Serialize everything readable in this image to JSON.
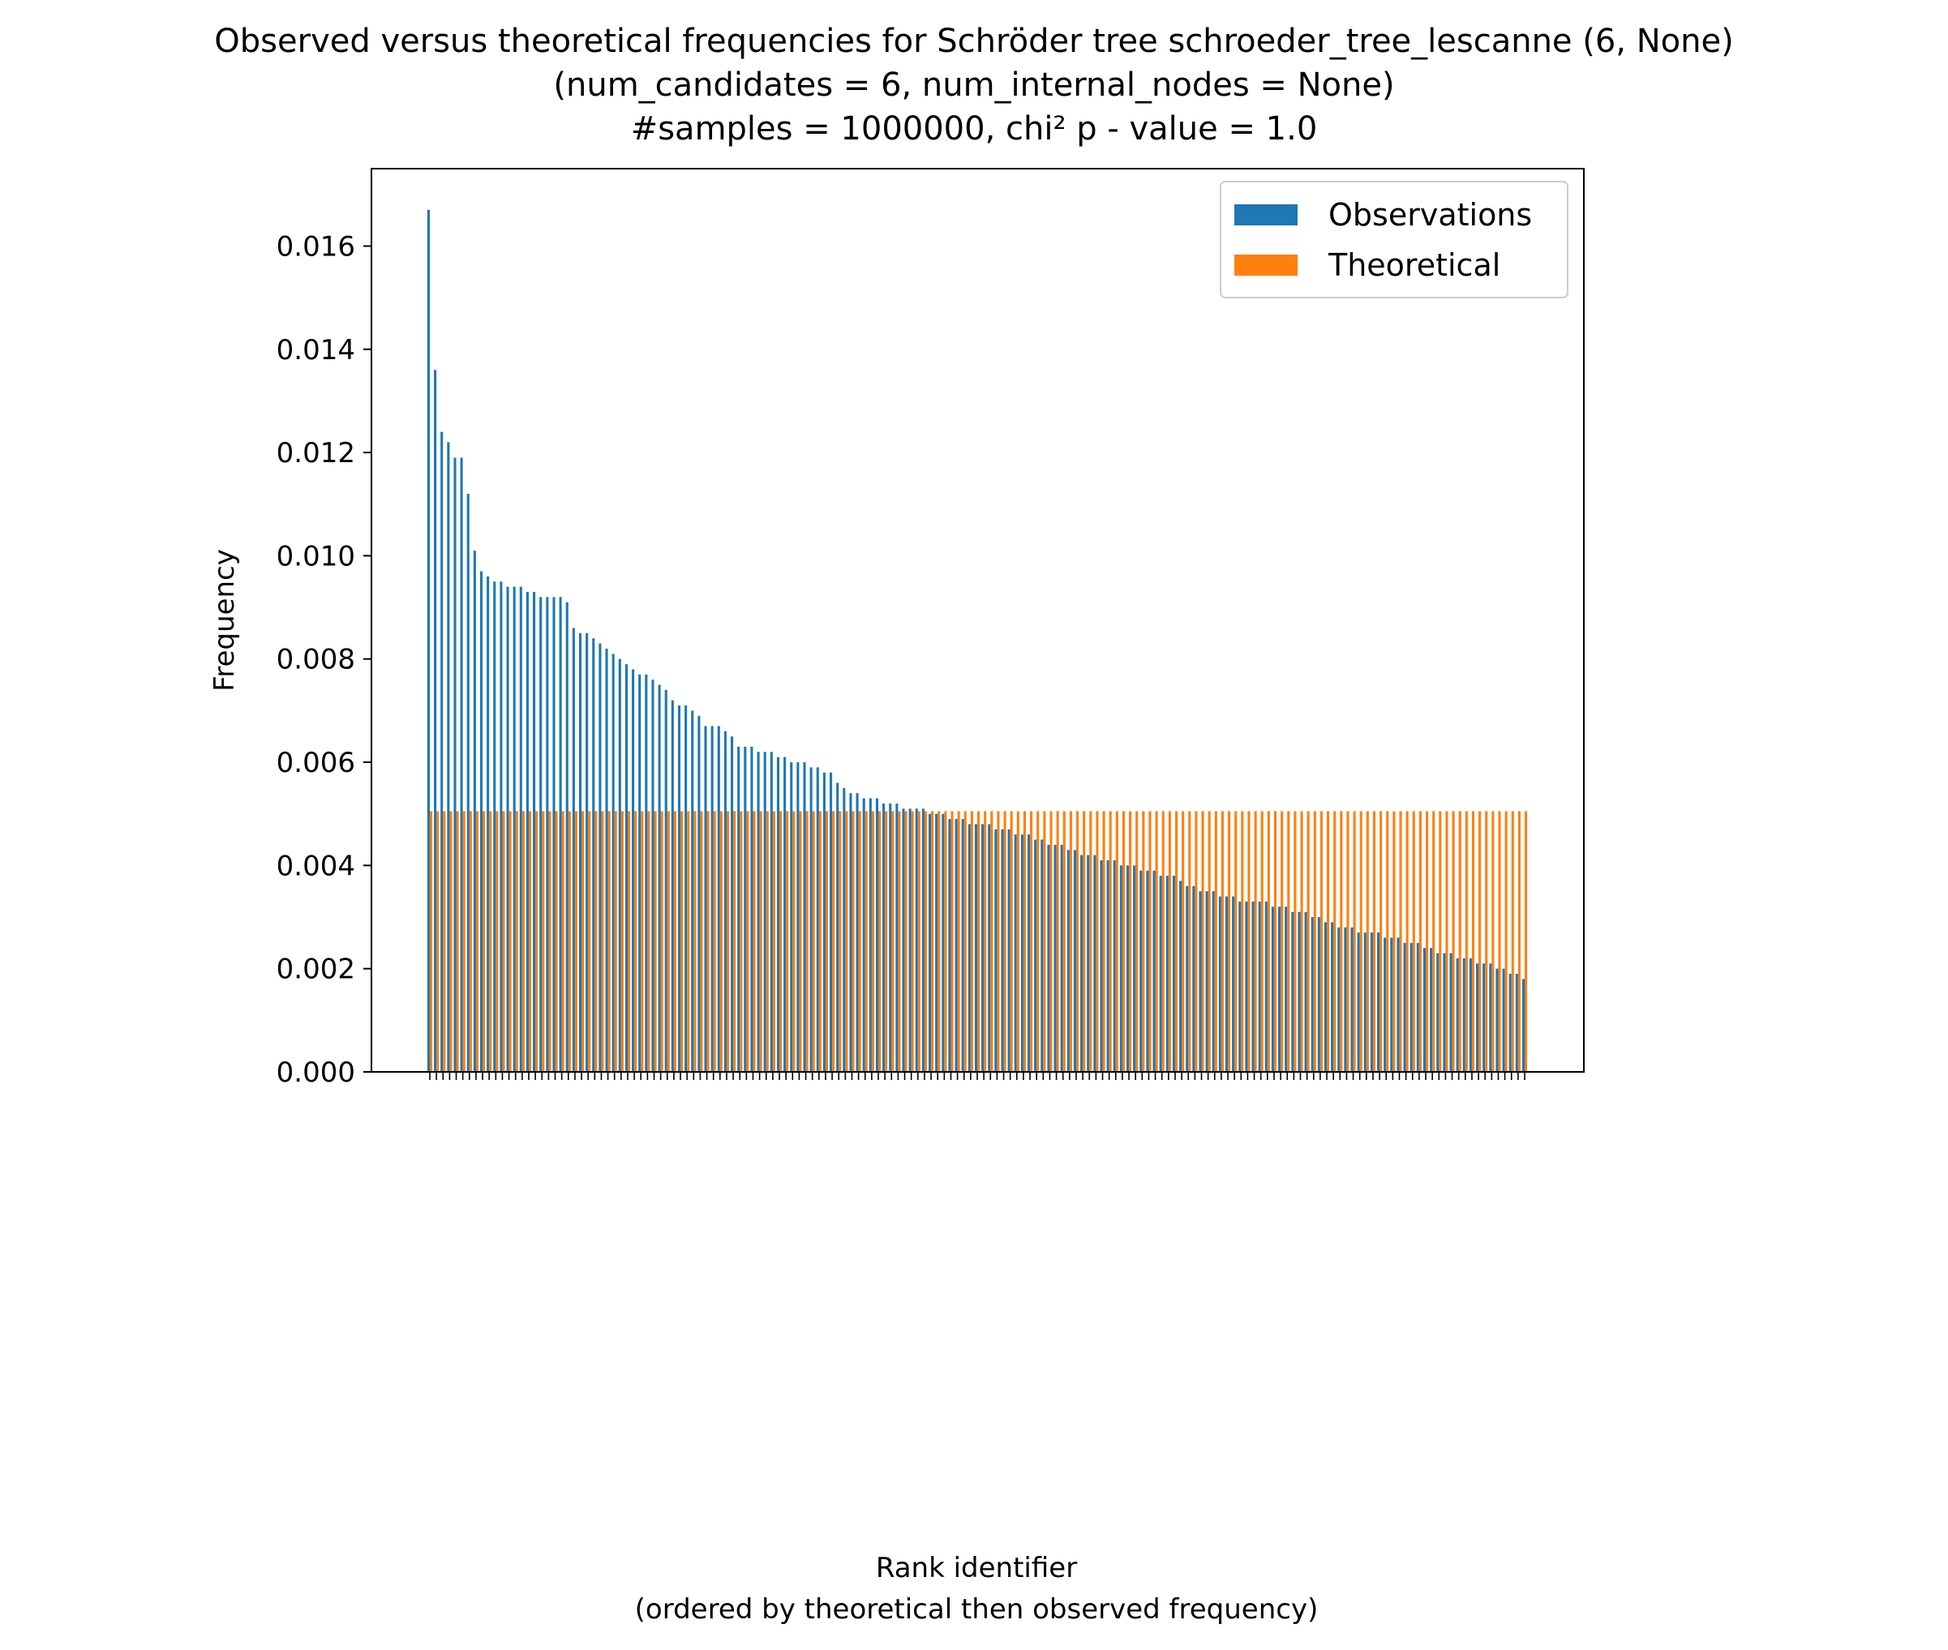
{
  "chart_data": {
    "type": "bar",
    "title_lines": [
      "Observed versus theoretical frequencies for Schröder tree schroeder_tree_lescanne (6, None)",
      "(num_candidates = 6, num_internal_nodes = None)",
      "#samples = 1000000, chi² p - value = 1.0"
    ],
    "xlabel_lines": [
      "Rank identifier",
      "(ordered by theoretical then observed frequency)"
    ],
    "ylabel": "Frequency",
    "ylim": [
      0,
      0.0175
    ],
    "yticks": [
      0.0,
      0.002,
      0.004,
      0.006,
      0.008,
      0.01,
      0.012,
      0.014,
      0.016
    ],
    "ytick_labels": [
      "0.000",
      "0.002",
      "0.004",
      "0.006",
      "0.008",
      "0.010",
      "0.012",
      "0.014",
      "0.016"
    ],
    "legend_position": "top-right",
    "grid": false,
    "colors": {
      "observed": "#1f77b4",
      "theoretical": "#ff7f0e"
    },
    "series": [
      {
        "name": "Observations",
        "values": [
          0.0167,
          0.0136,
          0.0124,
          0.0122,
          0.0119,
          0.0119,
          0.0112,
          0.0101,
          0.0097,
          0.0096,
          0.0095,
          0.0095,
          0.0094,
          0.0094,
          0.0094,
          0.0093,
          0.0093,
          0.0092,
          0.0092,
          0.0092,
          0.0092,
          0.0091,
          0.0086,
          0.0085,
          0.0085,
          0.0084,
          0.0083,
          0.0082,
          0.0081,
          0.008,
          0.0079,
          0.0078,
          0.0077,
          0.0077,
          0.0076,
          0.0075,
          0.0074,
          0.0072,
          0.0071,
          0.0071,
          0.007,
          0.0069,
          0.0067,
          0.0067,
          0.0067,
          0.0066,
          0.0065,
          0.0063,
          0.0063,
          0.0063,
          0.0062,
          0.0062,
          0.0062,
          0.0061,
          0.0061,
          0.006,
          0.006,
          0.006,
          0.0059,
          0.0059,
          0.0058,
          0.0058,
          0.0056,
          0.0055,
          0.0054,
          0.0054,
          0.0053,
          0.0053,
          0.0053,
          0.0052,
          0.0052,
          0.0052,
          0.0051,
          0.0051,
          0.0051,
          0.0051,
          0.005,
          0.005,
          0.005,
          0.0049,
          0.0049,
          0.0049,
          0.0048,
          0.0048,
          0.0048,
          0.0048,
          0.0047,
          0.0047,
          0.0047,
          0.0046,
          0.0046,
          0.0046,
          0.0045,
          0.0045,
          0.0044,
          0.0044,
          0.0044,
          0.0043,
          0.0043,
          0.0042,
          0.0042,
          0.0042,
          0.0041,
          0.0041,
          0.0041,
          0.004,
          0.004,
          0.004,
          0.0039,
          0.0039,
          0.0039,
          0.0038,
          0.0038,
          0.0038,
          0.0037,
          0.0036,
          0.0036,
          0.0035,
          0.0035,
          0.0035,
          0.0034,
          0.0034,
          0.0034,
          0.0033,
          0.0033,
          0.0033,
          0.0033,
          0.0033,
          0.0032,
          0.0032,
          0.0032,
          0.0031,
          0.0031,
          0.0031,
          0.003,
          0.003,
          0.0029,
          0.0029,
          0.0028,
          0.0028,
          0.0028,
          0.0027,
          0.0027,
          0.0027,
          0.0027,
          0.0026,
          0.0026,
          0.0026,
          0.0025,
          0.0025,
          0.0025,
          0.0024,
          0.0024,
          0.0023,
          0.0023,
          0.0023,
          0.0022,
          0.0022,
          0.0022,
          0.0021,
          0.0021,
          0.0021,
          0.002,
          0.002,
          0.0019,
          0.0019,
          0.0018
        ]
      },
      {
        "name": "Theoretical",
        "values": [
          0.005051,
          0.005051,
          0.005051,
          0.005051,
          0.005051,
          0.005051,
          0.005051,
          0.005051,
          0.005051,
          0.005051,
          0.005051,
          0.005051,
          0.005051,
          0.005051,
          0.005051,
          0.005051,
          0.005051,
          0.005051,
          0.005051,
          0.005051,
          0.005051,
          0.005051,
          0.005051,
          0.005051,
          0.005051,
          0.005051,
          0.005051,
          0.005051,
          0.005051,
          0.005051,
          0.005051,
          0.005051,
          0.005051,
          0.005051,
          0.005051,
          0.005051,
          0.005051,
          0.005051,
          0.005051,
          0.005051,
          0.005051,
          0.005051,
          0.005051,
          0.005051,
          0.005051,
          0.005051,
          0.005051,
          0.005051,
          0.005051,
          0.005051,
          0.005051,
          0.005051,
          0.005051,
          0.005051,
          0.005051,
          0.005051,
          0.005051,
          0.005051,
          0.005051,
          0.005051,
          0.005051,
          0.005051,
          0.005051,
          0.005051,
          0.005051,
          0.005051,
          0.005051,
          0.005051,
          0.005051,
          0.005051,
          0.005051,
          0.005051,
          0.005051,
          0.005051,
          0.005051,
          0.005051,
          0.005051,
          0.005051,
          0.005051,
          0.005051,
          0.005051,
          0.005051,
          0.005051,
          0.005051,
          0.005051,
          0.005051,
          0.005051,
          0.005051,
          0.005051,
          0.005051,
          0.005051,
          0.005051,
          0.005051,
          0.005051,
          0.005051,
          0.005051,
          0.005051,
          0.005051,
          0.005051,
          0.005051,
          0.005051,
          0.005051,
          0.005051,
          0.005051,
          0.005051,
          0.005051,
          0.005051,
          0.005051,
          0.005051,
          0.005051,
          0.005051,
          0.005051,
          0.005051,
          0.005051,
          0.005051,
          0.005051,
          0.005051,
          0.005051,
          0.005051,
          0.005051,
          0.005051,
          0.005051,
          0.005051,
          0.005051,
          0.005051,
          0.005051,
          0.005051,
          0.005051,
          0.005051,
          0.005051,
          0.005051,
          0.005051,
          0.005051,
          0.005051,
          0.005051,
          0.005051,
          0.005051,
          0.005051,
          0.005051,
          0.005051,
          0.005051,
          0.005051,
          0.005051,
          0.005051,
          0.005051,
          0.005051,
          0.005051,
          0.005051,
          0.005051,
          0.005051,
          0.005051,
          0.005051,
          0.005051,
          0.005051,
          0.005051,
          0.005051,
          0.005051,
          0.005051,
          0.005051,
          0.005051,
          0.005051,
          0.005051,
          0.005051,
          0.005051,
          0.005051,
          0.005051,
          0.005051
        ]
      }
    ]
  }
}
